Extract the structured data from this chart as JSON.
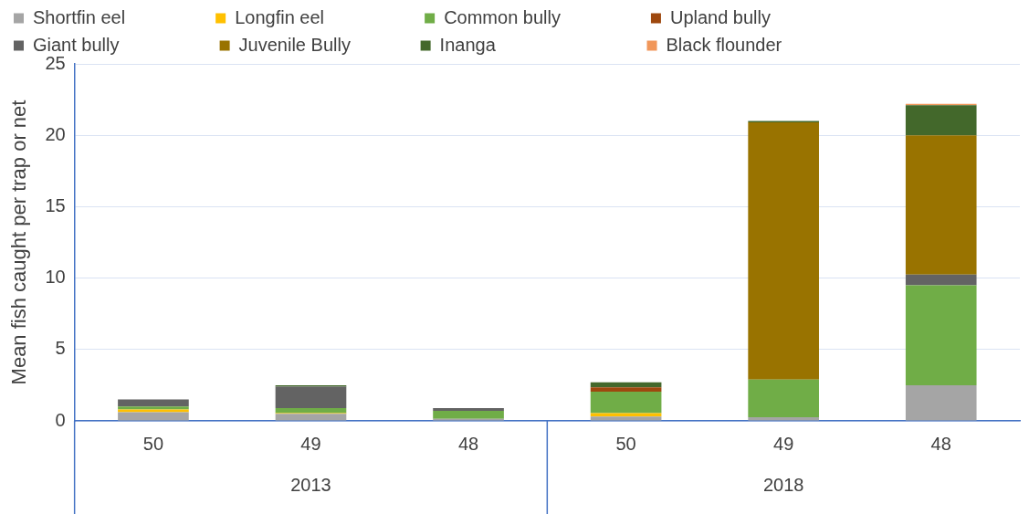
{
  "chart_data": {
    "type": "bar",
    "stacked": true,
    "ylabel": "Mean fish caught per trap or net",
    "categories": [
      "50",
      "49",
      "48",
      "50",
      "49",
      "48"
    ],
    "annotations": [
      "2013",
      "2018"
    ],
    "series": [
      {
        "name": "Shortfin eel",
        "color": "#a5a5a5",
        "values": [
          0.6,
          0.5,
          0.15,
          0.3,
          0.25,
          2.5
        ]
      },
      {
        "name": "Longfin eel",
        "color": "#ffc000",
        "values": [
          0.2,
          0.05,
          0,
          0.25,
          0,
          0
        ]
      },
      {
        "name": "Common bully",
        "color": "#70ad47",
        "values": [
          0.2,
          0.35,
          0.55,
          1.5,
          2.65,
          7.0
        ]
      },
      {
        "name": "Upland bully",
        "color": "#9e480e",
        "values": [
          0,
          0,
          0,
          0.3,
          0,
          0
        ]
      },
      {
        "name": "Giant bully",
        "color": "#636363",
        "values": [
          0.5,
          1.5,
          0.2,
          0,
          0,
          0.75
        ]
      },
      {
        "name": "Juvenile Bully",
        "color": "#997300",
        "values": [
          0,
          0,
          0,
          0,
          18.0,
          9.75
        ]
      },
      {
        "name": "Inanga",
        "color": "#43682b",
        "values": [
          0,
          0.1,
          0,
          0.35,
          0.1,
          2.1
        ]
      },
      {
        "name": "Black flounder",
        "color": "#f1975a",
        "values": [
          0,
          0,
          0,
          0,
          0,
          0.1
        ]
      }
    ],
    "ylim": [
      0,
      25
    ],
    "yticks": [
      0,
      5,
      10,
      15,
      20,
      25
    ],
    "grid": "y",
    "legend": "top"
  }
}
